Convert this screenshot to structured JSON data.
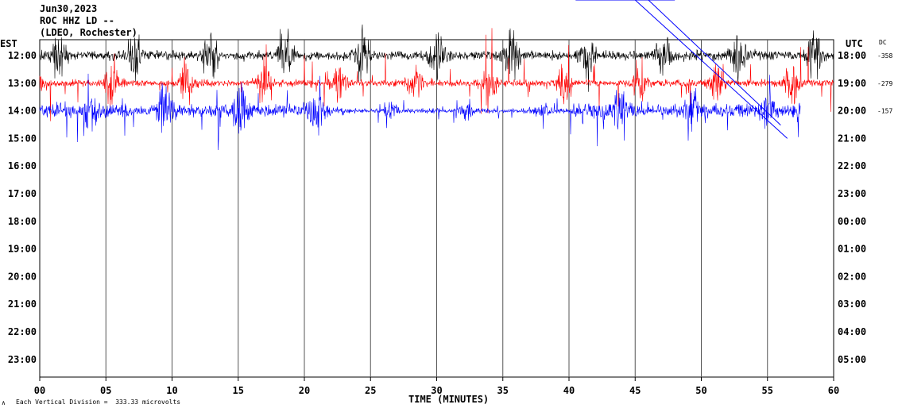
{
  "header": {
    "date": "Jun30,2023",
    "station": "ROC HHZ LD --",
    "network": "(LDEO, Rochester)"
  },
  "footer": {
    "division_note": "Each Vertical Division =  333.33 microvolts",
    "corner_mark": "∧"
  },
  "chart_data": {
    "type": "line",
    "title": "",
    "xlabel": "TIME (MINUTES)",
    "left_axis_label": "EST",
    "right_axis_label": "UTC",
    "dc_label": "DC",
    "x_ticks": [
      "00",
      "05",
      "10",
      "15",
      "20",
      "25",
      "30",
      "35",
      "40",
      "45",
      "50",
      "55",
      "60"
    ],
    "xlim": [
      0,
      60
    ],
    "left_hour_labels": [
      "12:00",
      "13:00",
      "14:00",
      "15:00",
      "16:00",
      "17:00",
      "18:00",
      "19:00",
      "20:00",
      "21:00",
      "22:00",
      "23:00"
    ],
    "right_hour_labels": [
      "18:00",
      "19:00",
      "20:00",
      "21:00",
      "22:00",
      "23:00",
      "00:00",
      "01:00",
      "02:00",
      "03:00",
      "04:00",
      "05:00"
    ],
    "dc_offsets": [
      "-358",
      "-279",
      "-157"
    ],
    "grid": "vertical every 5 minutes",
    "series": [
      {
        "trace_hour": "12:00",
        "color": "#000000",
        "end_minute": 60
      },
      {
        "trace_hour": "13:00",
        "color": "#ff0000",
        "end_minute": 60
      },
      {
        "trace_hour": "14:00",
        "color": "#0000ff",
        "end_minute": 57.5
      }
    ]
  }
}
